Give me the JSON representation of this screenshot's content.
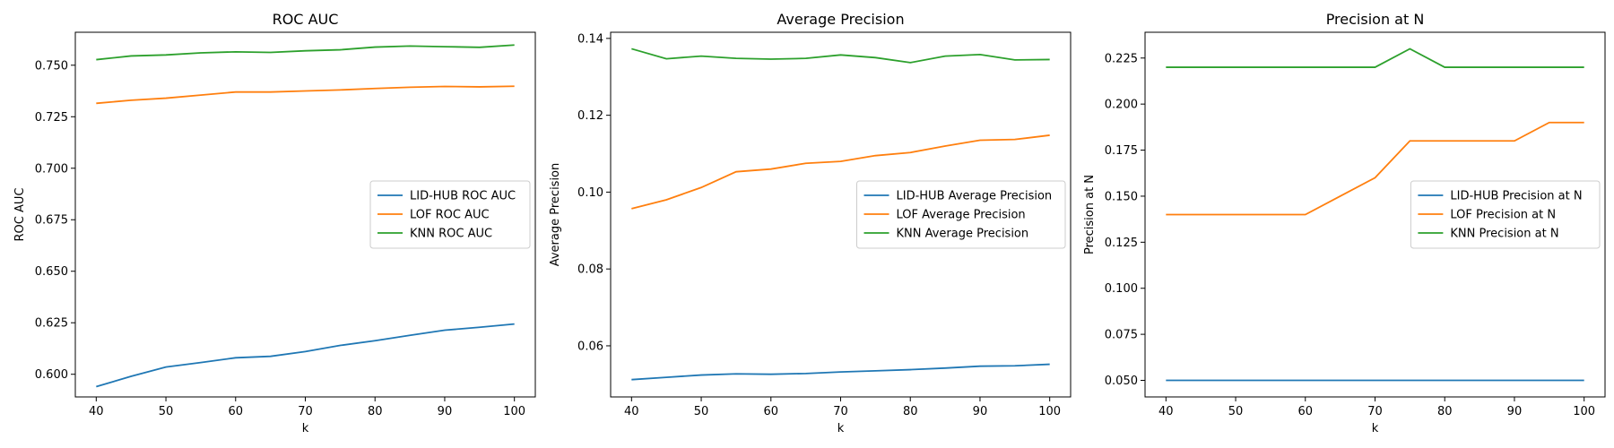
{
  "colors": {
    "LID-HUB": "#1f77b4",
    "LOF": "#ff7f0e",
    "KNN": "#2ca02c"
  },
  "chart_data": [
    {
      "type": "line",
      "title": "ROC AUC",
      "xlabel": "k",
      "ylabel": "ROC AUC",
      "x": [
        40,
        45,
        50,
        55,
        60,
        65,
        70,
        75,
        80,
        85,
        90,
        95,
        100
      ],
      "xlim": [
        37,
        103
      ],
      "ylim": [
        0.589,
        0.766
      ],
      "xticks": [
        40,
        50,
        60,
        70,
        80,
        90,
        100
      ],
      "yticks": [
        0.6,
        0.625,
        0.65,
        0.675,
        0.7,
        0.725,
        0.75
      ],
      "ytick_labels": [
        "0.600",
        "0.625",
        "0.650",
        "0.675",
        "0.700",
        "0.725",
        "0.750"
      ],
      "legend": "center-right",
      "grid": false,
      "series": [
        {
          "name": "LID-HUB ROC AUC",
          "key": "LID-HUB",
          "values": [
            0.594,
            0.599,
            0.6035,
            0.6057,
            0.608,
            0.6087,
            0.611,
            0.614,
            0.6163,
            0.6189,
            0.6214,
            0.6228,
            0.6244
          ]
        },
        {
          "name": "LOF ROC AUC",
          "key": "LOF",
          "values": [
            0.7315,
            0.733,
            0.734,
            0.7355,
            0.737,
            0.737,
            0.7375,
            0.738,
            0.7387,
            0.7393,
            0.7397,
            0.7395,
            0.7398
          ]
        },
        {
          "name": "KNN ROC AUC",
          "key": "KNN",
          "values": [
            0.7527,
            0.7545,
            0.755,
            0.756,
            0.7565,
            0.7562,
            0.757,
            0.7575,
            0.7588,
            0.7593,
            0.759,
            0.7587,
            0.7598
          ]
        }
      ]
    },
    {
      "type": "line",
      "title": "Average Precision",
      "xlabel": "k",
      "ylabel": "Average Precision",
      "x": [
        40,
        45,
        50,
        55,
        60,
        65,
        70,
        75,
        80,
        85,
        90,
        95,
        100
      ],
      "xlim": [
        37,
        103
      ],
      "ylim": [
        0.0467,
        0.1416
      ],
      "xticks": [
        40,
        50,
        60,
        70,
        80,
        90,
        100
      ],
      "yticks": [
        0.06,
        0.08,
        0.1,
        0.12,
        0.14
      ],
      "ytick_labels": [
        "0.06",
        "0.08",
        "0.10",
        "0.12",
        "0.14"
      ],
      "legend": "center-right",
      "grid": false,
      "series": [
        {
          "name": "LID-HUB Average Precision",
          "key": "LID-HUB",
          "values": [
            0.0512,
            0.0518,
            0.0524,
            0.0527,
            0.0526,
            0.0528,
            0.0532,
            0.0535,
            0.0538,
            0.0542,
            0.0547,
            0.0548,
            0.0552
          ]
        },
        {
          "name": "LOF Average Precision",
          "key": "LOF",
          "values": [
            0.0957,
            0.098,
            0.1012,
            0.1053,
            0.106,
            0.1075,
            0.108,
            0.1095,
            0.1103,
            0.112,
            0.1135,
            0.1137,
            0.1148
          ]
        },
        {
          "name": "KNN Average Precision",
          "key": "KNN",
          "values": [
            0.1373,
            0.1347,
            0.1354,
            0.1348,
            0.1346,
            0.1348,
            0.1357,
            0.135,
            0.1337,
            0.1354,
            0.1358,
            0.1344,
            0.1345
          ]
        }
      ]
    },
    {
      "type": "line",
      "title": "Precision at N",
      "xlabel": "k",
      "ylabel": "Precision at N",
      "x": [
        40,
        45,
        50,
        55,
        60,
        65,
        70,
        75,
        80,
        85,
        90,
        95,
        100
      ],
      "xlim": [
        37,
        103
      ],
      "ylim": [
        0.041,
        0.239
      ],
      "xticks": [
        40,
        50,
        60,
        70,
        80,
        90,
        100
      ],
      "yticks": [
        0.05,
        0.075,
        0.1,
        0.125,
        0.15,
        0.175,
        0.2,
        0.225
      ],
      "ytick_labels": [
        "0.050",
        "0.075",
        "0.100",
        "0.125",
        "0.150",
        "0.175",
        "0.200",
        "0.225"
      ],
      "legend": "center-right",
      "grid": false,
      "series": [
        {
          "name": "LID-HUB Precision at N",
          "key": "LID-HUB",
          "values": [
            0.05,
            0.05,
            0.05,
            0.05,
            0.05,
            0.05,
            0.05,
            0.05,
            0.05,
            0.05,
            0.05,
            0.05,
            0.05
          ]
        },
        {
          "name": "LOF Precision at N",
          "key": "LOF",
          "values": [
            0.14,
            0.14,
            0.14,
            0.14,
            0.14,
            0.15,
            0.16,
            0.18,
            0.18,
            0.18,
            0.18,
            0.19,
            0.19
          ]
        },
        {
          "name": "KNN Precision at N",
          "key": "KNN",
          "values": [
            0.22,
            0.22,
            0.22,
            0.22,
            0.22,
            0.22,
            0.22,
            0.23,
            0.22,
            0.22,
            0.22,
            0.22,
            0.22
          ]
        }
      ]
    }
  ]
}
